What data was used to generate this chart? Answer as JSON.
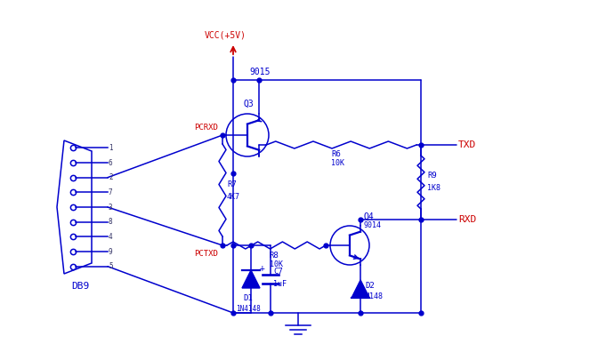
{
  "bg_color": "#ffffff",
  "wire_color": "#0000cd",
  "label_color": "#cc0000",
  "figsize": [
    6.63,
    3.96
  ],
  "dpi": 100,
  "xlim": [
    0,
    663
  ],
  "ylim": [
    0,
    396
  ]
}
